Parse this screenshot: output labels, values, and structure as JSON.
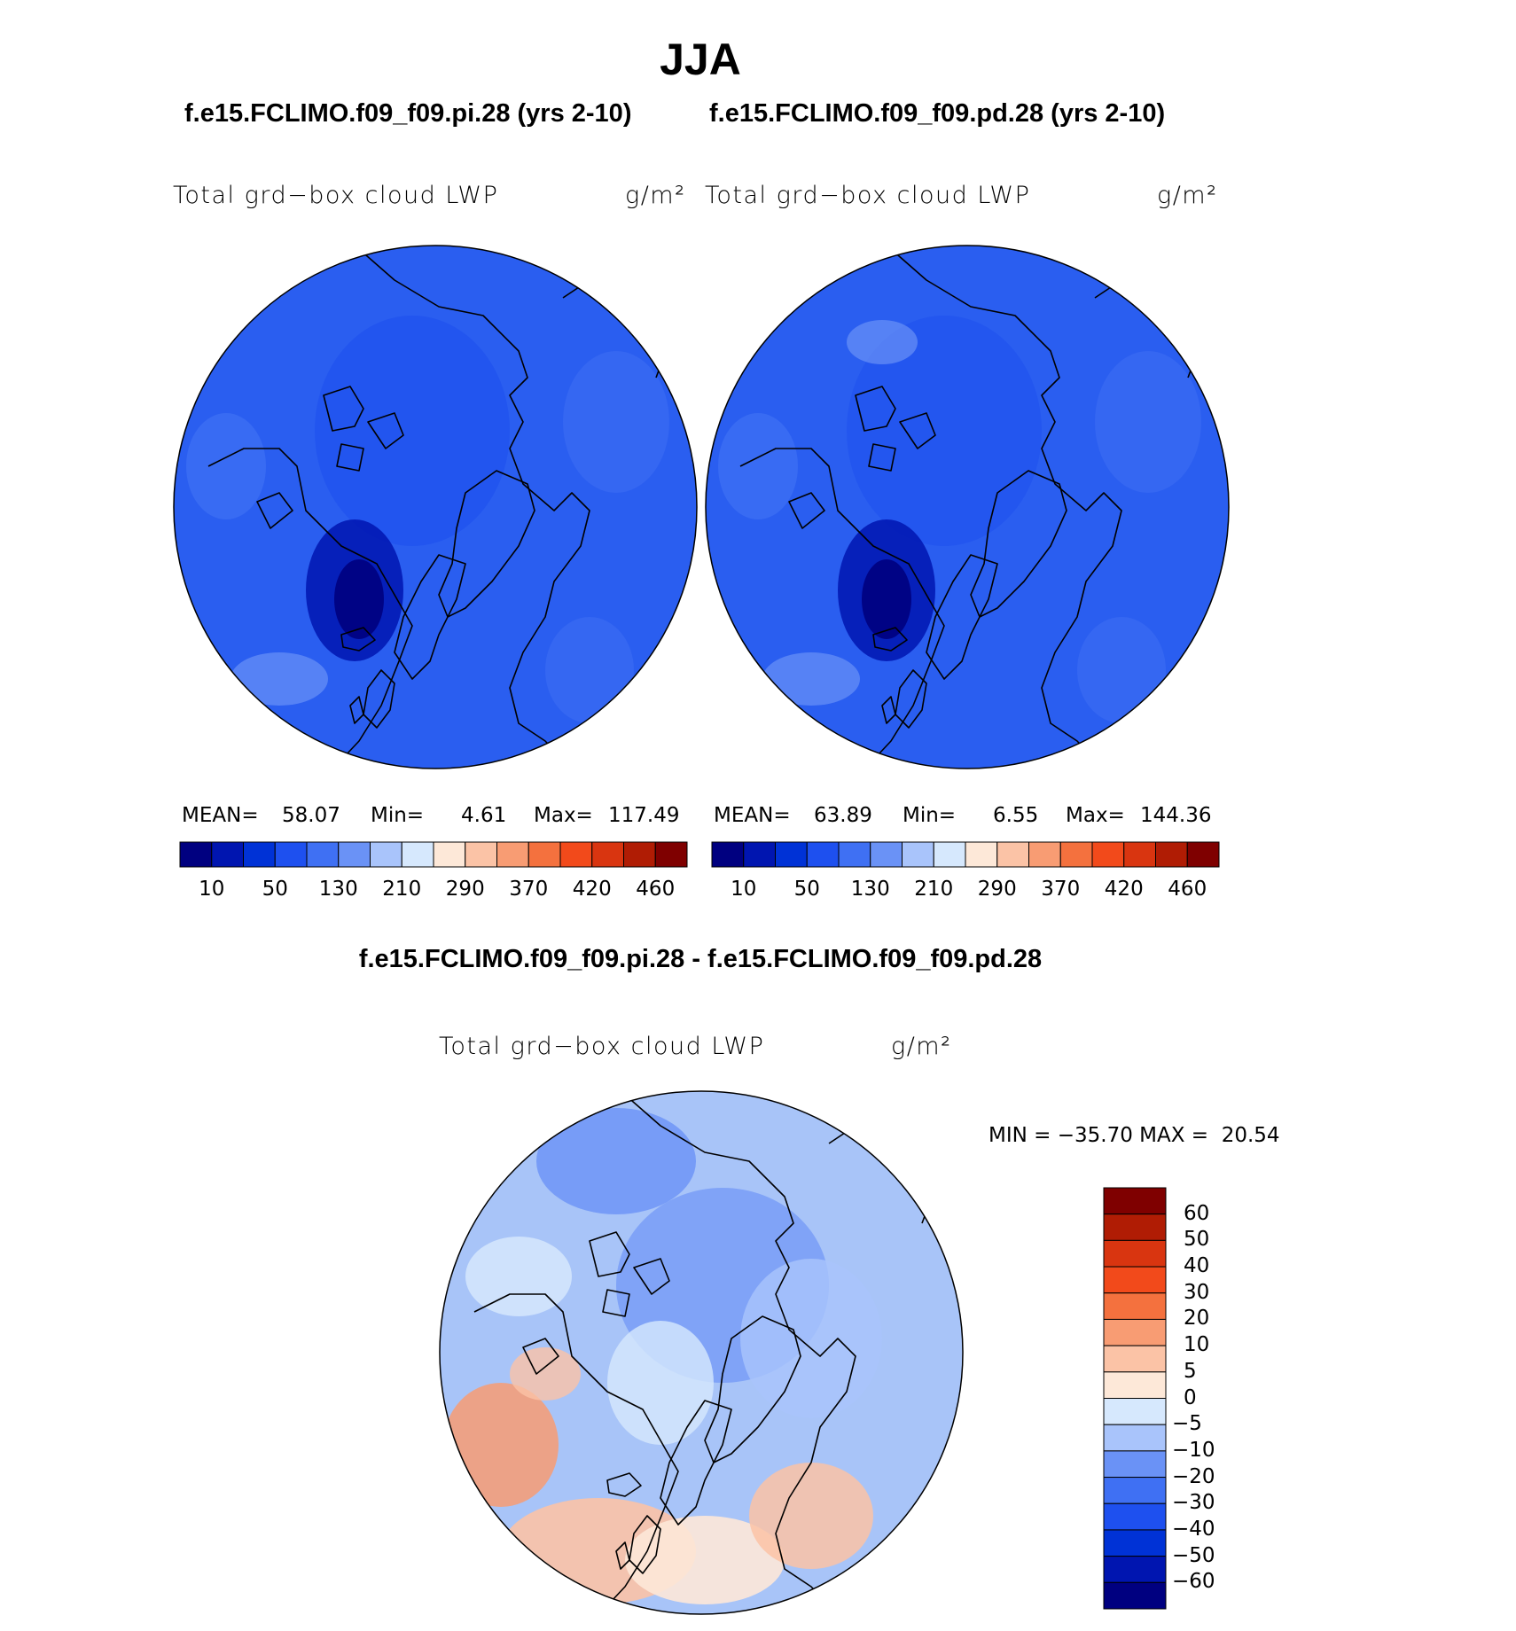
{
  "page": {
    "title": "JJA",
    "subtitle_left": "f.e15.FCLIMO.f09_f09.pi.28 (yrs 2-10)",
    "subtitle_right": "f.e15.FCLIMO.f09_f09.pd.28 (yrs 2-10)",
    "difference_title": "f.e15.FCLIMO.f09_f09.pi.28 - f.e15.FCLIMO.f09_f09.pd.28"
  },
  "panels": [
    {
      "variable": "Total grd−box cloud LWP",
      "units": "g/m²",
      "mean_label": "MEAN=",
      "mean": "58.07",
      "min_label": "Min=",
      "min": "4.61",
      "max_label": "Max=",
      "max": "117.49",
      "base_color": "#2a5ef0",
      "colorbar": {
        "colors": [
          "#000080",
          "#0015b0",
          "#0032d6",
          "#1e50ef",
          "#3f70f3",
          "#6a92f6",
          "#a9c4fb",
          "#d6e8fd",
          "#fde8d8",
          "#fbc3a6",
          "#f89c73",
          "#f4713e",
          "#f24a1b",
          "#d93510",
          "#b01c04",
          "#7f0000"
        ],
        "tick_labels": [
          "10",
          "50",
          "130",
          "210",
          "290",
          "370",
          "420",
          "460"
        ]
      }
    },
    {
      "variable": "Total grd−box cloud LWP",
      "units": "g/m²",
      "mean_label": "MEAN=",
      "mean": "63.89",
      "min_label": "Min=",
      "min": "6.55",
      "max_label": "Max=",
      "max": "144.36",
      "base_color": "#2a5ef0",
      "colorbar": {
        "colors": [
          "#000080",
          "#0015b0",
          "#0032d6",
          "#1e50ef",
          "#3f70f3",
          "#6a92f6",
          "#a9c4fb",
          "#d6e8fd",
          "#fde8d8",
          "#fbc3a6",
          "#f89c73",
          "#f4713e",
          "#f24a1b",
          "#d93510",
          "#b01c04",
          "#7f0000"
        ],
        "tick_labels": [
          "10",
          "50",
          "130",
          "210",
          "290",
          "370",
          "420",
          "460"
        ]
      }
    }
  ],
  "difference": {
    "variable": "Total grd−box cloud LWP",
    "units": "g/m²",
    "minmax_text": "MIN = −35.70 MAX =  20.54",
    "base_color": "#a8c4f8",
    "colorbar": {
      "colors": [
        "#7f0000",
        "#b01c04",
        "#d93510",
        "#f24a1b",
        "#f4713e",
        "#f89c73",
        "#fbc3a6",
        "#fde8d8",
        "#d6e8fd",
        "#a9c4fb",
        "#6a92f6",
        "#3f70f3",
        "#1e50ef",
        "#0032d6",
        "#0015b0",
        "#000080"
      ],
      "tick_labels": [
        "60",
        "50",
        "40",
        "30",
        "20",
        "10",
        "5",
        "0",
        "−5",
        "−10",
        "−20",
        "−30",
        "−40",
        "−50",
        "−60"
      ]
    }
  }
}
